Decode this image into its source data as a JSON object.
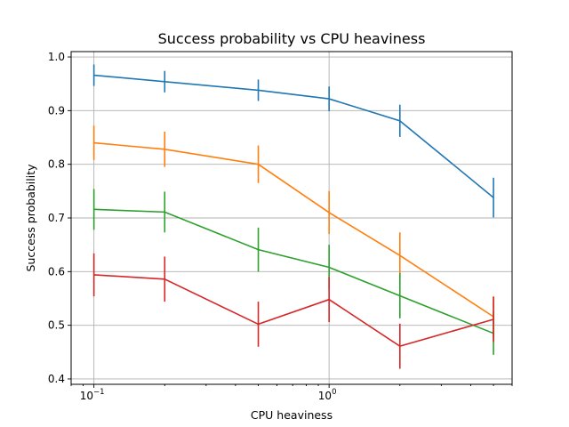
{
  "chart_data": {
    "type": "line",
    "title": "Success probability vs CPU heaviness",
    "xlabel": "CPU heaviness",
    "ylabel": "Success probability",
    "xscale": "log",
    "xlim": [
      0.08,
      6.0
    ],
    "ylim": [
      0.39,
      1.01
    ],
    "grid": true,
    "x": [
      0.1,
      0.2,
      0.5,
      1.0,
      2.0,
      5.0
    ],
    "xticks": [
      {
        "value": 0.1,
        "base": "10",
        "exp": "−1"
      },
      {
        "value": 1.0,
        "base": "10",
        "exp": "0"
      }
    ],
    "yticks": [
      0.4,
      0.5,
      0.6,
      0.7,
      0.8,
      0.9,
      1.0
    ],
    "ytick_labels": [
      "0.4",
      "0.5",
      "0.6",
      "0.7",
      "0.8",
      "0.9",
      "1.0"
    ],
    "series": [
      {
        "color": "#1f77b4",
        "values": [
          0.966,
          0.954,
          0.938,
          0.922,
          0.881,
          0.738
        ],
        "errors": [
          0.02,
          0.02,
          0.02,
          0.023,
          0.03,
          0.037
        ]
      },
      {
        "color": "#ff7f0e",
        "values": [
          0.84,
          0.828,
          0.8,
          0.71,
          0.63,
          0.516
        ],
        "errors": [
          0.032,
          0.033,
          0.035,
          0.04,
          0.043,
          0.038
        ]
      },
      {
        "color": "#2ca02c",
        "values": [
          0.716,
          0.711,
          0.641,
          0.608,
          0.555,
          0.485
        ],
        "errors": [
          0.038,
          0.038,
          0.041,
          0.042,
          0.042,
          0.04
        ]
      },
      {
        "color": "#d62728",
        "values": [
          0.594,
          0.586,
          0.502,
          0.548,
          0.461,
          0.511
        ],
        "errors": [
          0.04,
          0.042,
          0.042,
          0.042,
          0.042,
          0.042
        ]
      }
    ]
  }
}
